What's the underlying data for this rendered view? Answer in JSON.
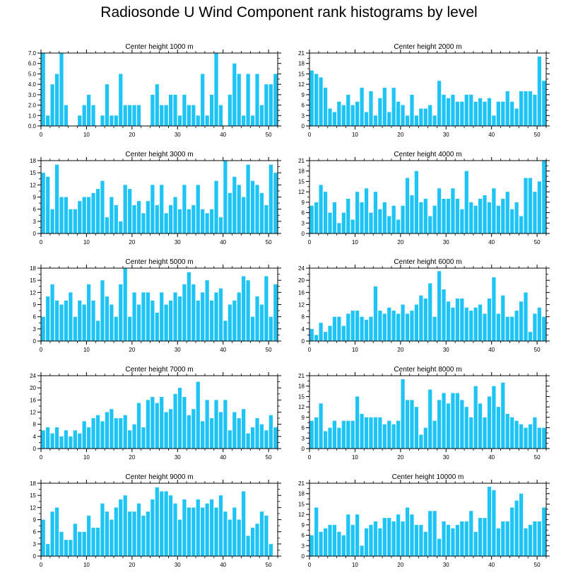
{
  "title": "Radiosonde U Wind Component rank histograms by level",
  "colors": {
    "bar": "#1ec4f5",
    "axis": "#000000",
    "background": "#ffffff"
  },
  "chart_data": [
    {
      "type": "bar",
      "title": "Center height 1000 m",
      "xlim": [
        0,
        52
      ],
      "xticks": [
        0,
        10,
        20,
        30,
        40,
        50
      ],
      "ylim": [
        0,
        7
      ],
      "yticks": [
        0,
        1,
        2,
        3,
        4,
        5,
        6,
        7
      ],
      "ytick_labels": [
        "0.0",
        "1.0",
        "2.0",
        "3.0",
        "4.0",
        "5.0",
        "6.0",
        "7.0"
      ],
      "values": [
        7,
        1,
        4,
        5,
        7,
        2,
        0,
        0,
        1,
        2,
        3,
        2,
        0,
        1,
        4,
        1,
        1,
        5,
        2,
        2,
        2,
        2,
        0,
        0,
        3,
        4,
        2,
        2,
        3,
        3,
        1,
        3,
        2,
        2,
        1,
        5,
        1,
        3,
        7,
        2,
        0,
        3,
        6,
        5,
        1,
        5,
        1,
        5,
        2,
        4,
        4,
        5
      ]
    },
    {
      "type": "bar",
      "title": "Center height 2000 m",
      "xlim": [
        0,
        52
      ],
      "xticks": [
        0,
        10,
        20,
        30,
        40,
        50
      ],
      "ylim": [
        0,
        21
      ],
      "yticks": [
        0,
        3,
        6,
        9,
        12,
        15,
        18,
        21
      ],
      "ytick_labels": [
        "0",
        "3",
        "6",
        "9",
        "12",
        "15",
        "18",
        "21"
      ],
      "values": [
        16,
        15,
        14,
        11,
        5,
        4,
        7,
        6,
        9,
        6,
        7,
        11,
        4,
        10,
        3,
        8,
        11,
        4,
        11,
        7,
        6,
        3,
        9,
        3,
        5,
        5,
        6,
        3,
        13,
        9,
        8,
        9,
        7,
        7,
        9,
        9,
        7,
        8,
        7,
        8,
        3,
        7,
        7,
        10,
        7,
        5,
        10,
        10,
        10,
        9,
        20,
        13
      ]
    },
    {
      "type": "bar",
      "title": "Center height 3000 m",
      "xlim": [
        0,
        52
      ],
      "xticks": [
        0,
        10,
        20,
        30,
        40,
        50
      ],
      "ylim": [
        0,
        18
      ],
      "yticks": [
        0,
        3,
        6,
        9,
        12,
        15,
        18
      ],
      "ytick_labels": [
        "0",
        "3",
        "6",
        "9",
        "12",
        "15",
        "18"
      ],
      "values": [
        15,
        14,
        6,
        17,
        9,
        9,
        6,
        6,
        8,
        9,
        9,
        10,
        11,
        13,
        4,
        9,
        7,
        3,
        12,
        11,
        7,
        8,
        5,
        8,
        12,
        7,
        12,
        5,
        7,
        9,
        6,
        12,
        6,
        7,
        12,
        6,
        5,
        6,
        13,
        4,
        18,
        10,
        14,
        12,
        9,
        17,
        13,
        12,
        10,
        7,
        17,
        15
      ]
    },
    {
      "type": "bar",
      "title": "Center height 4000 m",
      "xlim": [
        0,
        52
      ],
      "xticks": [
        0,
        10,
        20,
        30,
        40,
        50
      ],
      "ylim": [
        0,
        21
      ],
      "yticks": [
        0,
        3,
        6,
        9,
        12,
        15,
        18,
        21
      ],
      "ytick_labels": [
        "0",
        "3",
        "6",
        "9",
        "12",
        "15",
        "18",
        "21"
      ],
      "values": [
        8,
        9,
        14,
        12,
        6,
        9,
        3,
        6,
        10,
        4,
        12,
        9,
        13,
        6,
        12,
        7,
        9,
        5,
        8,
        4,
        8,
        16,
        11,
        18,
        9,
        10,
        5,
        8,
        13,
        10,
        10,
        13,
        10,
        7,
        18,
        9,
        8,
        10,
        11,
        9,
        13,
        8,
        10,
        12,
        7,
        9,
        5,
        16,
        16,
        12,
        15,
        21
      ]
    },
    {
      "type": "bar",
      "title": "Center height 5000 m",
      "xlim": [
        0,
        52
      ],
      "xticks": [
        0,
        10,
        20,
        30,
        40,
        50
      ],
      "ylim": [
        0,
        18
      ],
      "yticks": [
        0,
        3,
        6,
        9,
        12,
        15,
        18
      ],
      "ytick_labels": [
        "0",
        "3",
        "6",
        "9",
        "12",
        "15",
        "18"
      ],
      "values": [
        6,
        11,
        14,
        10,
        9,
        10,
        12,
        6,
        10,
        9,
        14,
        10,
        5,
        15,
        11,
        9,
        6,
        14,
        18,
        6,
        12,
        9,
        12,
        12,
        10,
        7,
        12,
        9,
        10,
        12,
        11,
        14,
        17,
        14,
        10,
        12,
        15,
        10,
        12,
        13,
        5,
        9,
        10,
        12,
        16,
        15,
        6,
        11,
        9,
        16,
        6,
        14
      ]
    },
    {
      "type": "bar",
      "title": "Center height 6000 m",
      "xlim": [
        0,
        52
      ],
      "xticks": [
        0,
        10,
        20,
        30,
        40,
        50
      ],
      "ylim": [
        0,
        24
      ],
      "yticks": [
        0,
        4,
        8,
        12,
        16,
        20,
        24
      ],
      "ytick_labels": [
        "0",
        "4",
        "8",
        "12",
        "16",
        "20",
        "24"
      ],
      "values": [
        4,
        2,
        6,
        3,
        5,
        8,
        8,
        5,
        9,
        10,
        10,
        8,
        7,
        8,
        18,
        10,
        9,
        11,
        10,
        9,
        12,
        9,
        10,
        12,
        15,
        14,
        19,
        8,
        23,
        17,
        13,
        11,
        14,
        14,
        11,
        10,
        11,
        12,
        9,
        14,
        21,
        9,
        15,
        8,
        8,
        10,
        13,
        16,
        3,
        9,
        11,
        8
      ]
    },
    {
      "type": "bar",
      "title": "Center height 7000 m",
      "xlim": [
        0,
        52
      ],
      "xticks": [
        0,
        10,
        20,
        30,
        40,
        50
      ],
      "ylim": [
        0,
        24
      ],
      "yticks": [
        0,
        4,
        8,
        12,
        16,
        20,
        24
      ],
      "ytick_labels": [
        "0",
        "4",
        "8",
        "12",
        "16",
        "20",
        "24"
      ],
      "values": [
        6,
        7,
        5,
        7,
        4,
        6,
        4,
        6,
        5,
        9,
        7,
        10,
        11,
        9,
        12,
        13,
        10,
        10,
        11,
        6,
        8,
        15,
        7,
        16,
        17,
        15,
        17,
        12,
        13,
        18,
        20,
        17,
        11,
        13,
        22,
        9,
        16,
        10,
        16,
        12,
        16,
        6,
        12,
        10,
        13,
        5,
        7,
        10,
        8,
        6,
        11,
        7
      ]
    },
    {
      "type": "bar",
      "title": "Center height 8000 m",
      "xlim": [
        0,
        52
      ],
      "xticks": [
        0,
        10,
        20,
        30,
        40,
        50
      ],
      "ylim": [
        0,
        21
      ],
      "yticks": [
        0,
        3,
        6,
        9,
        12,
        15,
        18,
        21
      ],
      "ytick_labels": [
        "0",
        "3",
        "6",
        "9",
        "12",
        "15",
        "18",
        "21"
      ],
      "values": [
        8,
        9,
        13,
        5,
        6,
        8,
        6,
        8,
        8,
        8,
        15,
        10,
        9,
        9,
        9,
        9,
        7,
        8,
        7,
        8,
        20,
        14,
        14,
        12,
        4,
        6,
        17,
        8,
        14,
        16,
        13,
        16,
        16,
        14,
        12,
        9,
        18,
        13,
        9,
        15,
        18,
        12,
        19,
        10,
        9,
        8,
        7,
        6,
        7,
        9,
        6,
        6
      ]
    },
    {
      "type": "bar",
      "title": "Center height 9000 m",
      "xlim": [
        0,
        52
      ],
      "xticks": [
        0,
        10,
        20,
        30,
        40,
        50
      ],
      "ylim": [
        0,
        18
      ],
      "yticks": [
        0,
        3,
        6,
        9,
        12,
        15,
        18
      ],
      "ytick_labels": [
        "0",
        "3",
        "6",
        "9",
        "12",
        "15",
        "18"
      ],
      "values": [
        9,
        3,
        11,
        12,
        6,
        4,
        4,
        8,
        6,
        6,
        10,
        7,
        7,
        13,
        11,
        9,
        12,
        14,
        15,
        11,
        11,
        13,
        10,
        11,
        14,
        17,
        16,
        16,
        15,
        13,
        9,
        14,
        12,
        12,
        14,
        12,
        13,
        14,
        12,
        15,
        11,
        9,
        12,
        9,
        16,
        5,
        7,
        8,
        11,
        10,
        3,
        0
      ]
    },
    {
      "type": "bar",
      "title": "Center height 10000 m",
      "xlim": [
        0,
        52
      ],
      "xticks": [
        0,
        10,
        20,
        30,
        40,
        50
      ],
      "ylim": [
        0,
        21
      ],
      "yticks": [
        0,
        3,
        6,
        9,
        12,
        15,
        18,
        21
      ],
      "ytick_labels": [
        "0",
        "3",
        "6",
        "9",
        "12",
        "15",
        "18",
        "21"
      ],
      "values": [
        6,
        14,
        7,
        8,
        9,
        9,
        7,
        6,
        12,
        9,
        12,
        3,
        8,
        9,
        10,
        8,
        11,
        11,
        10,
        12,
        10,
        14,
        12,
        9,
        9,
        7,
        13,
        13,
        5,
        10,
        9,
        8,
        9,
        10,
        10,
        13,
        7,
        11,
        11,
        20,
        19,
        8,
        10,
        10,
        14,
        16,
        18,
        8,
        9,
        10,
        10,
        14
      ]
    }
  ]
}
